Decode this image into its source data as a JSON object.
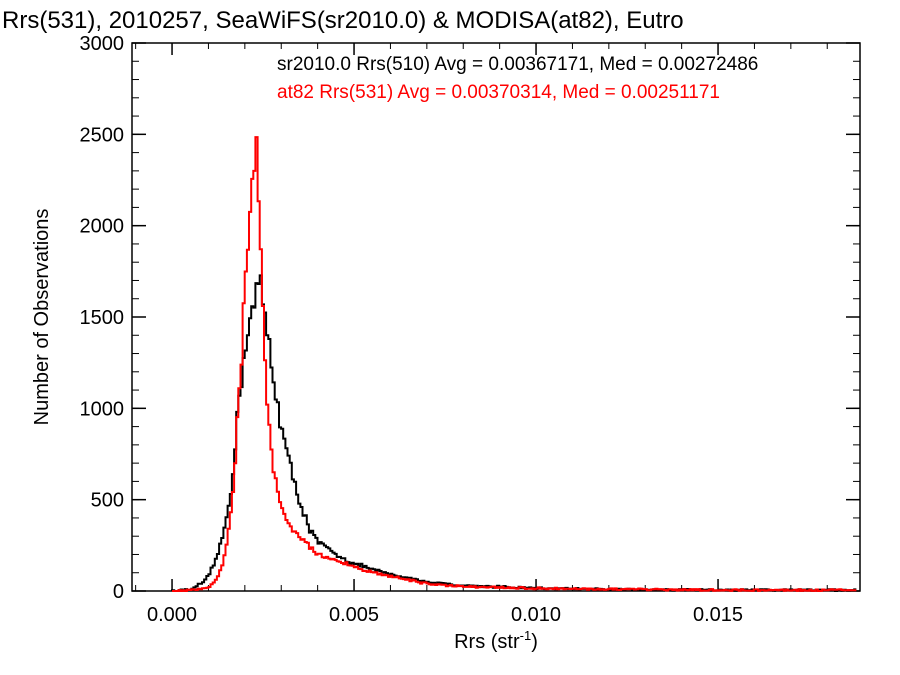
{
  "chart_data": {
    "type": "line",
    "title": "Rrs(531), 2010257, SeaWiFS(sr2010.0) & MODISA(at82), Eutro",
    "xlabel": {
      "base": "Rrs (str",
      "sup": "-1",
      "close": ")"
    },
    "ylabel": "Number of Observations",
    "xlim": [
      -0.0011,
      0.0189
    ],
    "ylim": [
      0,
      3000
    ],
    "x_ticks": [
      {
        "value": 0.0,
        "label": "0.000"
      },
      {
        "value": 0.005,
        "label": "0.005"
      },
      {
        "value": 0.01,
        "label": "0.010"
      },
      {
        "value": 0.015,
        "label": "0.015"
      }
    ],
    "y_ticks": [
      {
        "value": 0,
        "label": "0"
      },
      {
        "value": 500,
        "label": "500"
      },
      {
        "value": 1000,
        "label": "1000"
      },
      {
        "value": 1500,
        "label": "1500"
      },
      {
        "value": 2000,
        "label": "2000"
      },
      {
        "value": 2500,
        "label": "2500"
      },
      {
        "value": 3000,
        "label": "3000"
      }
    ],
    "grid": false,
    "legend_position": "top-right",
    "series": [
      {
        "name": "sr2010.0 Rrs(510) Avg = 0.00367171, Med = 0.00272486",
        "color": "#000000",
        "x": [
          0.0,
          0.0005,
          0.0008,
          0.001,
          0.0012,
          0.0014,
          0.0016,
          0.0017,
          0.0018,
          0.0019,
          0.002,
          0.0021,
          0.0022,
          0.0023,
          0.0024,
          0.0025,
          0.0026,
          0.0027,
          0.0028,
          0.003,
          0.0032,
          0.0034,
          0.0036,
          0.0038,
          0.004,
          0.0045,
          0.005,
          0.006,
          0.007,
          0.008,
          0.01,
          0.012,
          0.015,
          0.0188
        ],
        "y": [
          0,
          10,
          40,
          80,
          170,
          300,
          520,
          720,
          960,
          1150,
          1330,
          1460,
          1520,
          1600,
          1720,
          1560,
          1450,
          1300,
          1150,
          900,
          720,
          560,
          440,
          330,
          270,
          200,
          150,
          90,
          50,
          30,
          15,
          10,
          5,
          5
        ]
      },
      {
        "name": "at82 Rrs(531) Avg = 0.00370314, Med = 0.00251171",
        "color": "#ff0000",
        "x": [
          0.0,
          0.0006,
          0.001,
          0.0012,
          0.0014,
          0.0016,
          0.0017,
          0.0018,
          0.0019,
          0.002,
          0.0021,
          0.0022,
          0.0023,
          0.0024,
          0.0025,
          0.0026,
          0.0027,
          0.0028,
          0.003,
          0.0032,
          0.0034,
          0.0036,
          0.0038,
          0.004,
          0.0045,
          0.005,
          0.006,
          0.007,
          0.008,
          0.01,
          0.012,
          0.015,
          0.0188
        ],
        "y": [
          0,
          5,
          20,
          60,
          150,
          380,
          620,
          950,
          1250,
          1650,
          1900,
          2350,
          2440,
          2100,
          1600,
          1100,
          800,
          650,
          480,
          380,
          310,
          280,
          240,
          200,
          170,
          130,
          80,
          40,
          25,
          15,
          10,
          5,
          5
        ]
      }
    ]
  }
}
